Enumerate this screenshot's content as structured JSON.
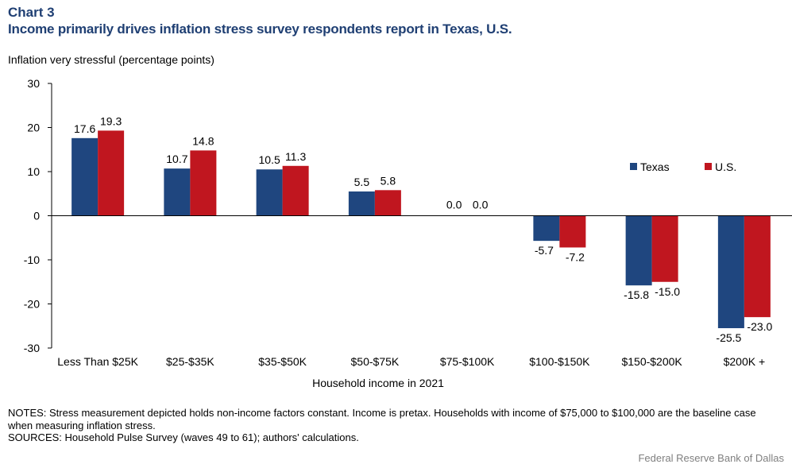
{
  "header": {
    "chart_number": "Chart 3",
    "title": "Income primarily drives inflation stress survey respondents report in Texas, U.S."
  },
  "footer": {
    "notes": "NOTES: Stress measurement depicted holds non-income factors constant. Income is pretax. Households with income of $75,000 to $100,000 are the baseline case when measuring inflation stress.",
    "sources": "SOURCES: Household Pulse Survey (waves 49 to 61); authors' calculations.",
    "credit": "Federal Reserve Bank of Dallas"
  },
  "colors": {
    "texas": "#1f467f",
    "us": "#c0161f"
  },
  "chart_data": {
    "type": "bar",
    "title": "Income primarily drives inflation stress survey respondents report in Texas, U.S.",
    "xlabel": "Household income in 2021",
    "ylabel": "Inflation very stressful (percentage points)",
    "ylim": [
      -30,
      30
    ],
    "yticks": [
      30,
      20,
      10,
      0,
      -10,
      -20,
      -30
    ],
    "legend_position": "right",
    "categories": [
      "Less Than $25K",
      "$25-$35K",
      "$35-$50K",
      "$50-$75K",
      "$75-$100K",
      "$100-$150K",
      "$150-$200K",
      "$200K +"
    ],
    "series": [
      {
        "name": "Texas",
        "values": [
          17.6,
          10.7,
          10.5,
          5.5,
          0.0,
          -5.7,
          -15.8,
          -25.5
        ]
      },
      {
        "name": "U.S.",
        "values": [
          19.3,
          14.8,
          11.3,
          5.8,
          0.0,
          -7.2,
          -15.0,
          -23.0
        ]
      }
    ]
  }
}
